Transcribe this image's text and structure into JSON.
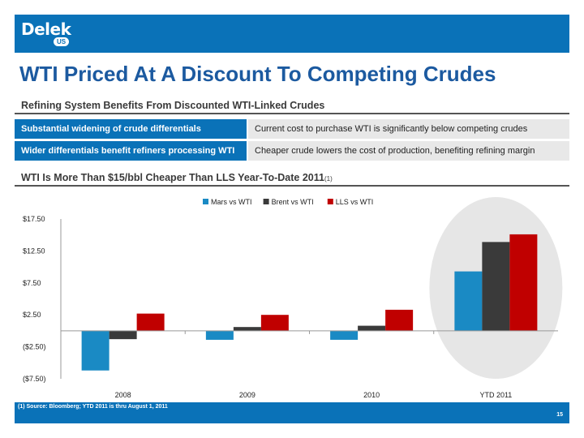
{
  "header": {
    "logo_text": "Delek",
    "logo_badge": "US"
  },
  "title": "WTI Priced At A Discount To Competing Crudes",
  "section1": {
    "heading": "Refining System Benefits From Discounted WTI-Linked Crudes",
    "rows": [
      {
        "left": "Substantial widening of crude differentials",
        "right": "Current cost to purchase WTI is significantly below competing crudes"
      },
      {
        "left": "Wider differentials benefit refiners processing WTI",
        "right": "Cheaper crude lowers the cost of production, benefiting refining margin"
      }
    ]
  },
  "section2": {
    "heading": "WTI Is More Than $15/bbl Cheaper Than LLS Year-To-Date 2011",
    "footnote_marker": "(1)"
  },
  "footnote": "(1)   Source: Bloomberg; YTD 2011 is thru August 1, 2011",
  "page_number": "15",
  "colors": {
    "brand_blue": "#0a72b8",
    "mars": "#1a8ac4",
    "brent": "#3a3a3a",
    "lls": "#c00000",
    "highlight": "#e6e6e6"
  },
  "chart_data": {
    "type": "bar",
    "title": "",
    "xlabel": "",
    "ylabel": "",
    "categories": [
      "2008",
      "2009",
      "2010",
      "YTD 2011"
    ],
    "series": [
      {
        "name": "Mars vs WTI",
        "values": [
          -6.2,
          -1.4,
          -1.4,
          9.3
        ]
      },
      {
        "name": "Brent vs WTI",
        "values": [
          -1.3,
          0.6,
          0.8,
          13.9
        ]
      },
      {
        "name": "LLS vs WTI",
        "values": [
          2.7,
          2.5,
          3.3,
          15.1
        ]
      }
    ],
    "ylim": [
      -7.5,
      17.5
    ],
    "yticks": [
      17.5,
      12.5,
      7.5,
      2.5,
      -2.5,
      -7.5
    ],
    "ytick_labels": [
      "$17.50",
      "$12.50",
      "$7.50",
      "$2.50",
      "($2.50)",
      "($7.50)"
    ],
    "legend_position": "top-center",
    "grid": false,
    "highlighted_category": "YTD 2011"
  }
}
